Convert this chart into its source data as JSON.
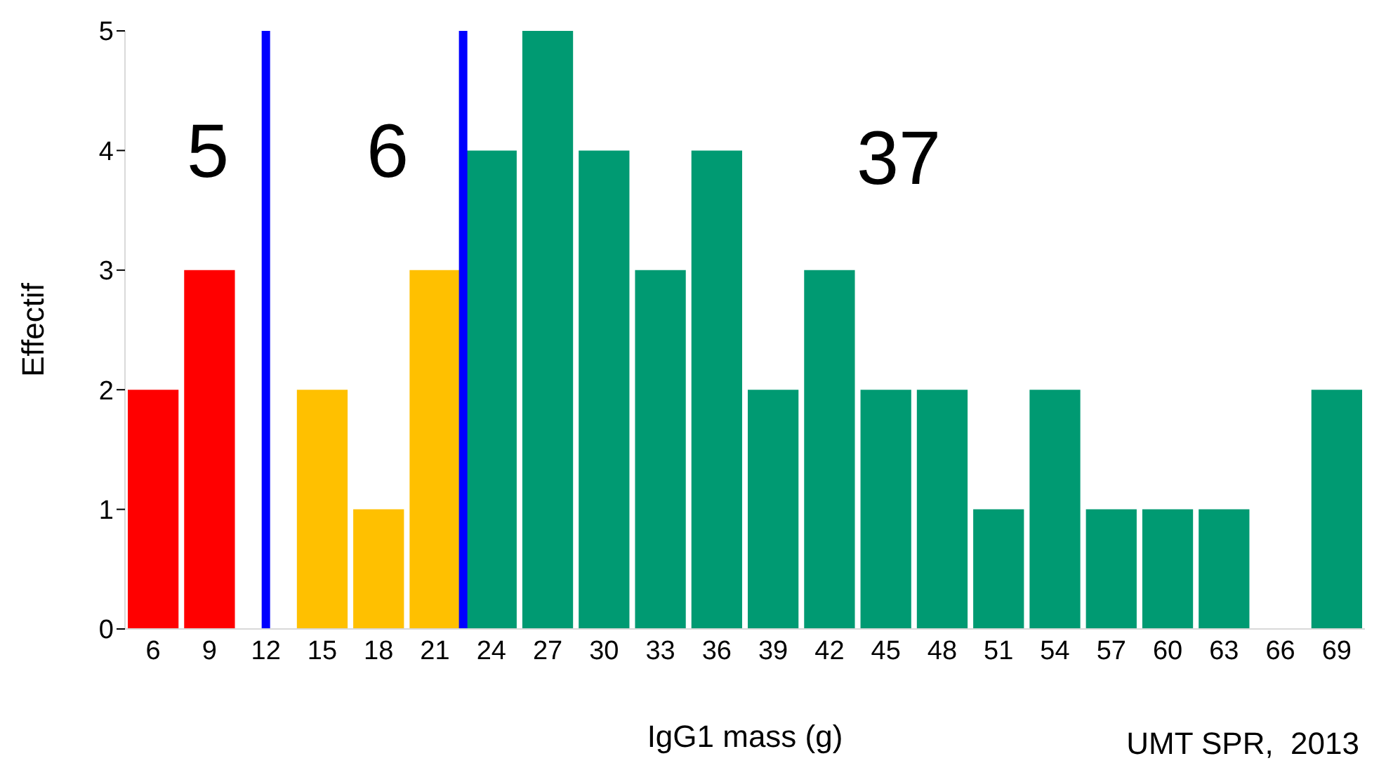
{
  "chart_data": {
    "type": "histogram",
    "xlabel": "IgG1 mass (g)",
    "ylabel": "Effectif",
    "bins": [
      4.5,
      7.5,
      10.5,
      13.5,
      16.5,
      19.5,
      22.5,
      25.5,
      28.5,
      31.5,
      34.5,
      37.5,
      40.5,
      43.5,
      46.5,
      49.5,
      52.5,
      55.5,
      58.5,
      61.5,
      64.5,
      67.5,
      70.5
    ],
    "values": [
      2,
      3,
      0,
      2,
      1,
      3,
      4,
      5,
      4,
      3,
      4,
      2,
      3,
      2,
      2,
      1,
      2,
      1,
      1,
      1,
      0,
      2
    ],
    "colors": [
      "#ff0000",
      "#ff0000",
      "#ff0000",
      "#ffc000",
      "#ffc000",
      "#ffc000",
      "#009a72",
      "#009a72",
      "#009a72",
      "#009a72",
      "#009a72",
      "#009a72",
      "#009a72",
      "#009a72",
      "#009a72",
      "#009a72",
      "#009a72",
      "#009a72",
      "#009a72",
      "#009a72",
      "#009a72",
      "#009a72"
    ],
    "xlim": [
      4.5,
      70.5
    ],
    "xticks": [
      6,
      9,
      12,
      15,
      18,
      21,
      24,
      27,
      30,
      33,
      36,
      39,
      42,
      45,
      48,
      51,
      54,
      57,
      60,
      63,
      66,
      69
    ],
    "ylim": [
      0,
      5
    ],
    "yticks": [
      0,
      1,
      2,
      3,
      4,
      5
    ],
    "grid": false,
    "ref_lines": [
      {
        "axis": "x",
        "value": 12,
        "color": "#0000ff"
      },
      {
        "axis": "x",
        "value": 22.5,
        "color": "#0000ff"
      }
    ],
    "annotations": [
      "5",
      "6",
      "37",
      "UMT SPR,  2013"
    ]
  }
}
